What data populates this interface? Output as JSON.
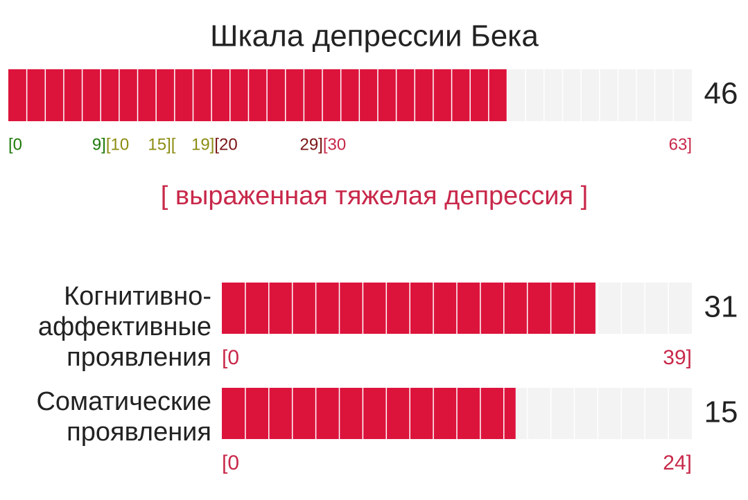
{
  "title": "Шкала депрессии Бека",
  "main": {
    "value": 46,
    "min": 0,
    "max": 63,
    "color": "#dc143c",
    "ranges": [
      {
        "start_label": "[0",
        "end": {
          "value": 9,
          "label": "9]"
        },
        "color": "#1f7a0c"
      },
      {
        "start_label": "[10",
        "end": {
          "value": 15,
          "label": "15]"
        },
        "color": "#8c8c14"
      },
      {
        "start_label": "[",
        "end": {
          "value": 19,
          "label": "19]"
        },
        "color": "#8c8c14"
      },
      {
        "start_label": "[20",
        "end": {
          "value": 29,
          "label": "29]"
        },
        "color": "#7a1414"
      },
      {
        "start_label": "[30",
        "end": {
          "value": 63,
          "label": "63]"
        },
        "color": "#c8284a"
      }
    ]
  },
  "severity": "[ выраженная тяжелая депрессия ]",
  "subscales": [
    {
      "label_lines": [
        "Когнитивно-",
        "аффективные",
        "проявления"
      ],
      "value": 31,
      "min": {
        "value": 0,
        "label": "[0"
      },
      "max": {
        "value": 39,
        "label": "39]"
      }
    },
    {
      "label_lines": [
        "Соматические",
        "проявления"
      ],
      "value": 15,
      "min": {
        "value": 0,
        "label": "[0"
      },
      "max": {
        "value": 24,
        "label": "24]"
      }
    }
  ]
}
